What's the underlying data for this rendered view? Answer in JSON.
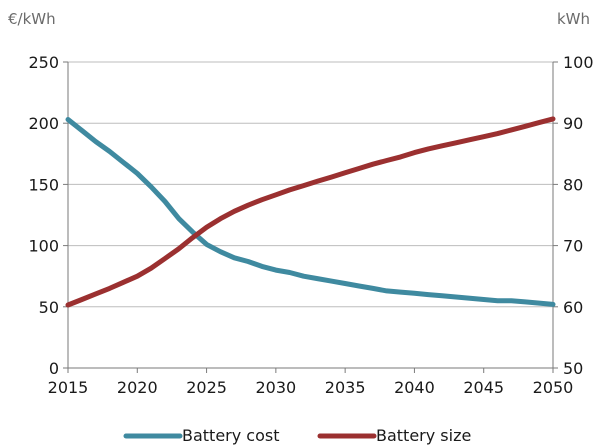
{
  "chart_data": {
    "type": "line",
    "left_unit": "€/kWh",
    "right_unit": "kWh",
    "x_ticks": [
      "2015",
      "2020",
      "2025",
      "2030",
      "2035",
      "2040",
      "2045",
      "2050"
    ],
    "xlim": [
      2015,
      2050
    ],
    "y_left": {
      "ylim": [
        0,
        250
      ],
      "ticks": [
        "0",
        "50",
        "100",
        "150",
        "200",
        "250"
      ]
    },
    "y_right": {
      "ylim": [
        50,
        100
      ],
      "ticks": [
        "50",
        "60",
        "70",
        "80",
        "90",
        "100"
      ]
    },
    "grid": true,
    "legend_position": "bottom-center",
    "series": [
      {
        "name": "Battery cost",
        "axis": "left",
        "color": "#3f8aa0",
        "x": [
          2015,
          2016,
          2017,
          2018,
          2019,
          2020,
          2021,
          2022,
          2023,
          2024,
          2025,
          2026,
          2027,
          2028,
          2029,
          2030,
          2031,
          2032,
          2033,
          2034,
          2035,
          2036,
          2037,
          2038,
          2039,
          2040,
          2041,
          2042,
          2043,
          2044,
          2045,
          2046,
          2047,
          2048,
          2049,
          2050
        ],
        "values": [
          203,
          194,
          185,
          177,
          168,
          159,
          148,
          136,
          122,
          111,
          101,
          95,
          90,
          87,
          83,
          80,
          78,
          75,
          73,
          71,
          69,
          67,
          65,
          63,
          62,
          61,
          60,
          59,
          58,
          57,
          56,
          55,
          55,
          54,
          53,
          52
        ]
      },
      {
        "name": "Battery size",
        "axis": "right",
        "color": "#9b3030",
        "x": [
          2015,
          2016,
          2017,
          2018,
          2019,
          2020,
          2021,
          2022,
          2023,
          2024,
          2025,
          2026,
          2027,
          2028,
          2029,
          2030,
          2031,
          2032,
          2033,
          2034,
          2035,
          2036,
          2037,
          2038,
          2039,
          2040,
          2041,
          2042,
          2043,
          2044,
          2045,
          2046,
          2047,
          2048,
          2049,
          2050
        ],
        "values": [
          60.3,
          61.2,
          62.1,
          63.0,
          64.0,
          65.0,
          66.3,
          67.9,
          69.5,
          71.3,
          73.0,
          74.4,
          75.6,
          76.6,
          77.5,
          78.3,
          79.1,
          79.8,
          80.5,
          81.2,
          81.9,
          82.6,
          83.3,
          83.9,
          84.5,
          85.2,
          85.8,
          86.3,
          86.8,
          87.3,
          87.8,
          88.3,
          88.9,
          89.5,
          90.1,
          90.7
        ]
      }
    ]
  }
}
